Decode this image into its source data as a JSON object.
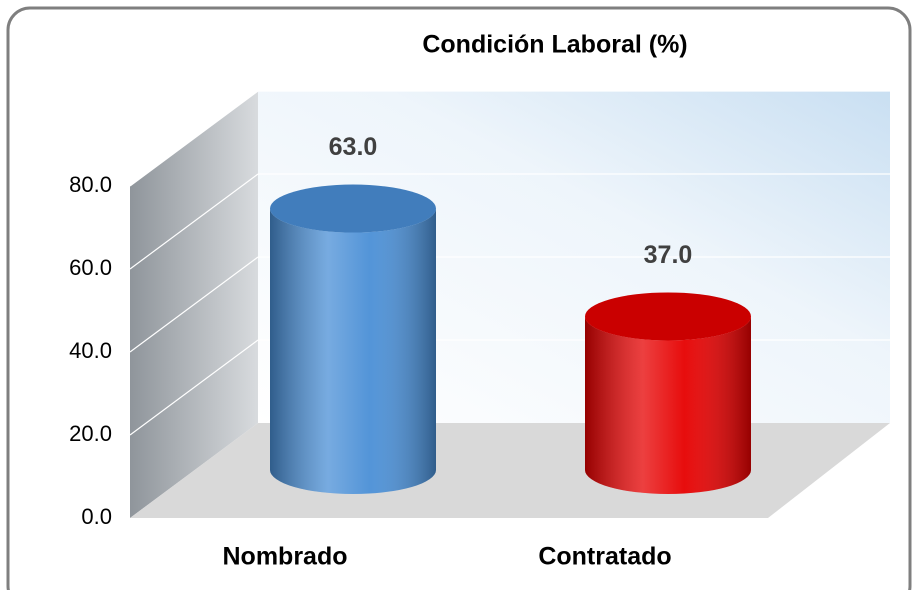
{
  "chart_data": {
    "type": "bar",
    "title": "Condición Laboral (%)",
    "categories": [
      "Nombrado",
      "Contratado"
    ],
    "values": [
      63.0,
      37.0
    ],
    "value_labels": [
      "63.0",
      "37.0"
    ],
    "colors": [
      "#4a8fd6",
      "#e60000"
    ],
    "ylim": [
      0,
      80
    ],
    "yticks": [
      {
        "value": 0,
        "label": "0.0"
      },
      {
        "value": 20,
        "label": "20.0"
      },
      {
        "value": 40,
        "label": "40.0"
      },
      {
        "value": 60,
        "label": "60.0"
      },
      {
        "value": 80,
        "label": "80.0"
      }
    ],
    "grid": true
  }
}
